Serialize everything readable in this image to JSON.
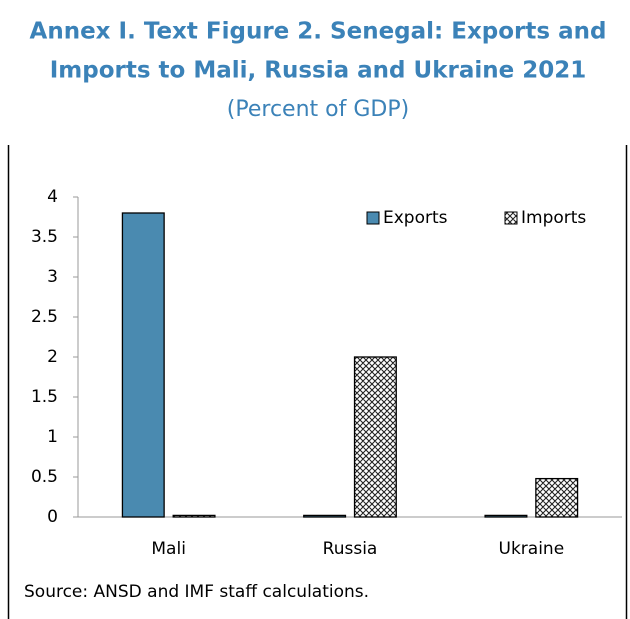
{
  "chart_data": {
    "type": "bar",
    "title": [
      "Annex I. Text Figure 2. Senegal: Exports and",
      "Imports to Mali, Russia and Ukraine 2021"
    ],
    "subtitle": "(Percent of GDP)",
    "categories": [
      "Mali",
      "Russia",
      "Ukraine"
    ],
    "series": [
      {
        "name": "Exports",
        "color": "#4a8ab0",
        "hatch": false,
        "values": [
          3.8,
          0.02,
          0.02
        ]
      },
      {
        "name": "Imports",
        "color": "#ffffff",
        "hatch": true,
        "values": [
          0.02,
          2.0,
          0.48
        ]
      }
    ],
    "ylim": [
      0,
      4
    ],
    "yticks": [
      0,
      0.5,
      1,
      1.5,
      2,
      2.5,
      3,
      3.5,
      4
    ],
    "legend": "top-right",
    "note": "Source: ANSD and IMF staff calculations."
  }
}
